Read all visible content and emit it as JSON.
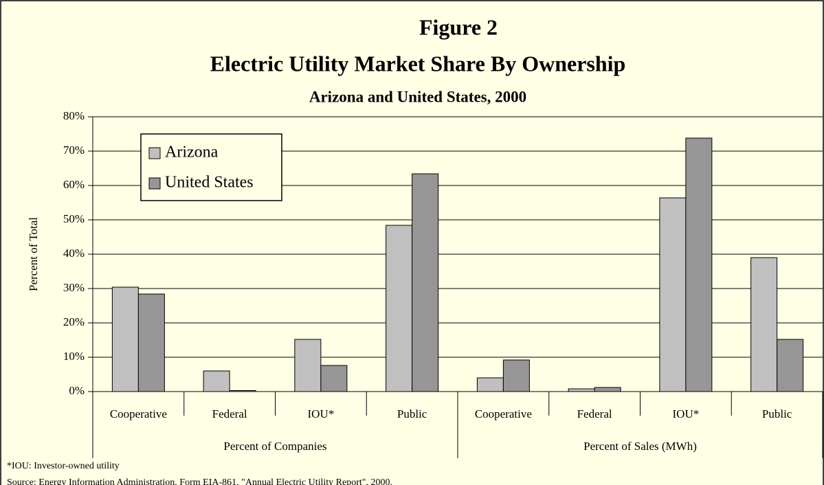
{
  "chart_data": {
    "type": "bar",
    "title": "Figure 2",
    "subtitle": "Electric Utility Market Share By Ownership",
    "subtitle2": "Arizona and United States, 2000",
    "y_label": "Percent of Total",
    "categories": [
      "Cooperative",
      "Federal",
      "IOU*",
      "Public",
      "Cooperative",
      "Federal",
      "IOU*",
      "Public"
    ],
    "groups": [
      "Percent of Companies",
      "Percent of Sales (MWh)"
    ],
    "series": [
      {
        "name": "Arizona",
        "color": "#c0c0c0",
        "values": [
          30.4,
          6,
          15.2,
          48.4,
          4,
          0.8,
          56.4,
          39
        ]
      },
      {
        "name": "United States",
        "color": "#969696",
        "values": [
          28.4,
          0.3,
          7.6,
          63.4,
          9.2,
          1.2,
          73.8,
          15.2
        ]
      }
    ],
    "ylim": [
      0,
      80
    ],
    "yticks": [
      {
        "value": 0,
        "label": "0%"
      },
      {
        "value": 10,
        "label": "10%"
      },
      {
        "value": 20,
        "label": "20%"
      },
      {
        "value": 30,
        "label": "30%"
      },
      {
        "value": 40,
        "label": "40%"
      },
      {
        "value": 50,
        "label": "50%"
      },
      {
        "value": 60,
        "label": "60%"
      },
      {
        "value": 70,
        "label": "70%"
      },
      {
        "value": 80,
        "label": "80%"
      }
    ],
    "grid": true,
    "legend": "upper left",
    "notes": [
      "*IOU:  Investor-owned utility",
      "Source:  Energy Information Administration, Form EIA-861, \"Annual Electric Utility Report\", 2000."
    ]
  }
}
